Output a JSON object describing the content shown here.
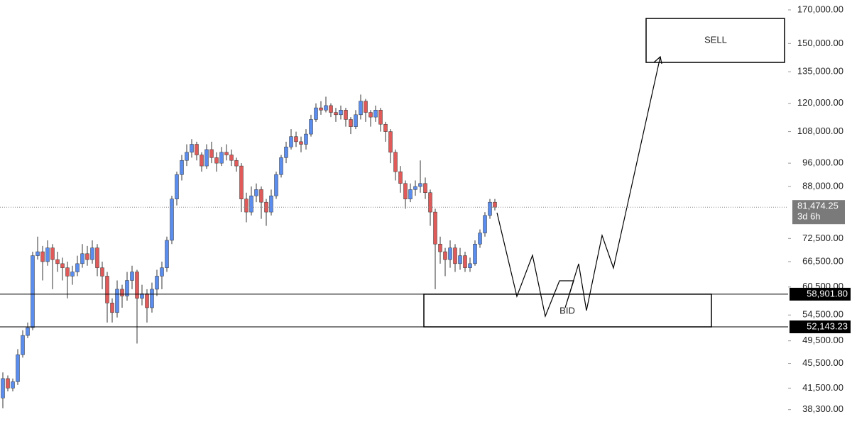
{
  "chart_data": {
    "type": "candlestick",
    "log_scale": true,
    "ylim": [
      36300,
      176400
    ],
    "yticks": [
      {
        "value": 170000,
        "label": "170,000.00"
      },
      {
        "value": 150000,
        "label": "150,000.00"
      },
      {
        "value": 135000,
        "label": "135,000.00"
      },
      {
        "value": 120000,
        "label": "120,000.00"
      },
      {
        "value": 108000,
        "label": "108,000.00"
      },
      {
        "value": 96000,
        "label": "96,000.00"
      },
      {
        "value": 88000,
        "label": "88,000.00"
      },
      {
        "value": 72500,
        "label": "72,500.00"
      },
      {
        "value": 66500,
        "label": "66,500.00"
      },
      {
        "value": 60500,
        "label": "60,500.00"
      },
      {
        "value": 54500,
        "label": "54,500.00"
      },
      {
        "value": 49500,
        "label": "49,500.00"
      },
      {
        "value": 45500,
        "label": "45,500.00"
      },
      {
        "value": 41500,
        "label": "41,500.00"
      },
      {
        "value": 38300,
        "label": "38,300.00"
      }
    ],
    "up_color": "#5b8def",
    "down_color": "#e05a5a",
    "ohlc": [
      [
        40000,
        44000,
        38500,
        43000
      ],
      [
        43000,
        43500,
        41000,
        41500
      ],
      [
        41500,
        43000,
        41000,
        42500
      ],
      [
        42500,
        48000,
        42000,
        47000
      ],
      [
        47000,
        51500,
        46500,
        50500
      ],
      [
        50500,
        53000,
        50000,
        52000
      ],
      [
        52000,
        69000,
        51500,
        68000
      ],
      [
        68000,
        73000,
        67000,
        69000
      ],
      [
        69000,
        70500,
        62000,
        66500
      ],
      [
        66500,
        72000,
        65500,
        70000
      ],
      [
        70000,
        71000,
        60000,
        67000
      ],
      [
        67000,
        69000,
        64000,
        66000
      ],
      [
        66000,
        67500,
        62000,
        65000
      ],
      [
        65000,
        66500,
        58000,
        63000
      ],
      [
        63000,
        65500,
        61000,
        64000
      ],
      [
        64000,
        68000,
        63000,
        66000
      ],
      [
        66000,
        71000,
        65000,
        68500
      ],
      [
        68500,
        70500,
        65500,
        67000
      ],
      [
        67000,
        72000,
        66000,
        70000
      ],
      [
        70000,
        71000,
        63000,
        65000
      ],
      [
        65000,
        66500,
        60000,
        63000
      ],
      [
        63000,
        64000,
        53000,
        57000
      ],
      [
        57000,
        58000,
        53000,
        55000
      ],
      [
        55000,
        62000,
        54000,
        60000
      ],
      [
        60000,
        61000,
        56000,
        58500
      ],
      [
        58500,
        64000,
        57500,
        62000
      ],
      [
        62000,
        65500,
        60000,
        64000
      ],
      [
        64000,
        64500,
        49000,
        58000
      ],
      [
        58000,
        61000,
        56500,
        59000
      ],
      [
        59000,
        60000,
        53000,
        56000
      ],
      [
        56000,
        61500,
        55000,
        60000
      ],
      [
        60000,
        64500,
        58500,
        63000
      ],
      [
        63000,
        66500,
        60000,
        65000
      ],
      [
        65000,
        73000,
        64000,
        72000
      ],
      [
        72000,
        85000,
        71000,
        84000
      ],
      [
        84000,
        93000,
        82000,
        92000
      ],
      [
        92000,
        99000,
        90000,
        97000
      ],
      [
        97000,
        103000,
        95000,
        100000
      ],
      [
        100000,
        105000,
        98000,
        103000
      ],
      [
        103000,
        104000,
        97000,
        99000
      ],
      [
        99000,
        100000,
        93000,
        95000
      ],
      [
        95000,
        103000,
        94000,
        101000
      ],
      [
        101000,
        104000,
        96000,
        98000
      ],
      [
        98000,
        100000,
        93000,
        96000
      ],
      [
        96000,
        102000,
        95000,
        100000
      ],
      [
        100000,
        103000,
        97000,
        99000
      ],
      [
        99000,
        101000,
        95000,
        97000
      ],
      [
        97000,
        98000,
        93000,
        95000
      ],
      [
        95000,
        96000,
        80000,
        84000
      ],
      [
        84000,
        86000,
        77000,
        80000
      ],
      [
        80000,
        88000,
        79000,
        85000
      ],
      [
        85000,
        89000,
        83000,
        87000
      ],
      [
        87000,
        88000,
        78000,
        83000
      ],
      [
        83000,
        84000,
        76000,
        80000
      ],
      [
        80000,
        87000,
        79000,
        85000
      ],
      [
        85000,
        93000,
        84000,
        92000
      ],
      [
        92000,
        99000,
        91000,
        98000
      ],
      [
        98000,
        104000,
        96000,
        102000
      ],
      [
        102000,
        109000,
        101000,
        106000
      ],
      [
        106000,
        108000,
        102000,
        104000
      ],
      [
        104000,
        106000,
        100000,
        103000
      ],
      [
        103000,
        109000,
        101000,
        107000
      ],
      [
        107000,
        115000,
        106000,
        113000
      ],
      [
        113000,
        120000,
        112000,
        118000
      ],
      [
        118000,
        121000,
        115000,
        117000
      ],
      [
        117000,
        123000,
        116000,
        119000
      ],
      [
        119000,
        120000,
        114000,
        116000
      ],
      [
        116000,
        118000,
        112000,
        115000
      ],
      [
        115000,
        119000,
        113000,
        117000
      ],
      [
        117000,
        118000,
        110000,
        113000
      ],
      [
        113000,
        114000,
        107000,
        110000
      ],
      [
        110000,
        117000,
        109000,
        115000
      ],
      [
        115000,
        124000,
        113000,
        121000
      ],
      [
        121000,
        122000,
        112000,
        116000
      ],
      [
        116000,
        117000,
        110000,
        114000
      ],
      [
        114000,
        119000,
        112000,
        117000
      ],
      [
        117000,
        118000,
        108000,
        111000
      ],
      [
        111000,
        112000,
        104000,
        108000
      ],
      [
        108000,
        109000,
        96000,
        100000
      ],
      [
        100000,
        101000,
        90000,
        93000
      ],
      [
        93000,
        95000,
        86000,
        89000
      ],
      [
        89000,
        90000,
        81000,
        84000
      ],
      [
        84000,
        89000,
        83000,
        87000
      ],
      [
        87000,
        90000,
        85000,
        88000
      ],
      [
        88000,
        97000,
        86000,
        89000
      ],
      [
        89000,
        91000,
        84000,
        86000
      ],
      [
        86000,
        87000,
        76000,
        80000
      ],
      [
        80000,
        81000,
        60000,
        71000
      ],
      [
        71000,
        73000,
        66000,
        69000
      ],
      [
        69000,
        70000,
        63000,
        67000
      ],
      [
        67000,
        72000,
        65000,
        70000
      ],
      [
        70000,
        71000,
        64000,
        66000
      ],
      [
        66000,
        70000,
        64500,
        68000
      ],
      [
        68000,
        69000,
        64000,
        65000
      ],
      [
        65000,
        67500,
        64000,
        66000
      ],
      [
        66000,
        72000,
        65500,
        71000
      ],
      [
        71000,
        75000,
        70000,
        74000
      ],
      [
        74000,
        80000,
        73000,
        79000
      ],
      [
        79000,
        84000,
        78000,
        83000
      ],
      [
        83000,
        84000,
        80500,
        81474.25
      ]
    ],
    "price_lines": [
      {
        "value": 58901.8,
        "label": "58,901.80"
      },
      {
        "value": 52143.23,
        "label": "52,143.23"
      }
    ],
    "last_price": {
      "value": 81474.25,
      "label": "81,474.25",
      "countdown": "3d 6h"
    },
    "annotations": {
      "sell": "SELL",
      "bid": "BID"
    }
  }
}
